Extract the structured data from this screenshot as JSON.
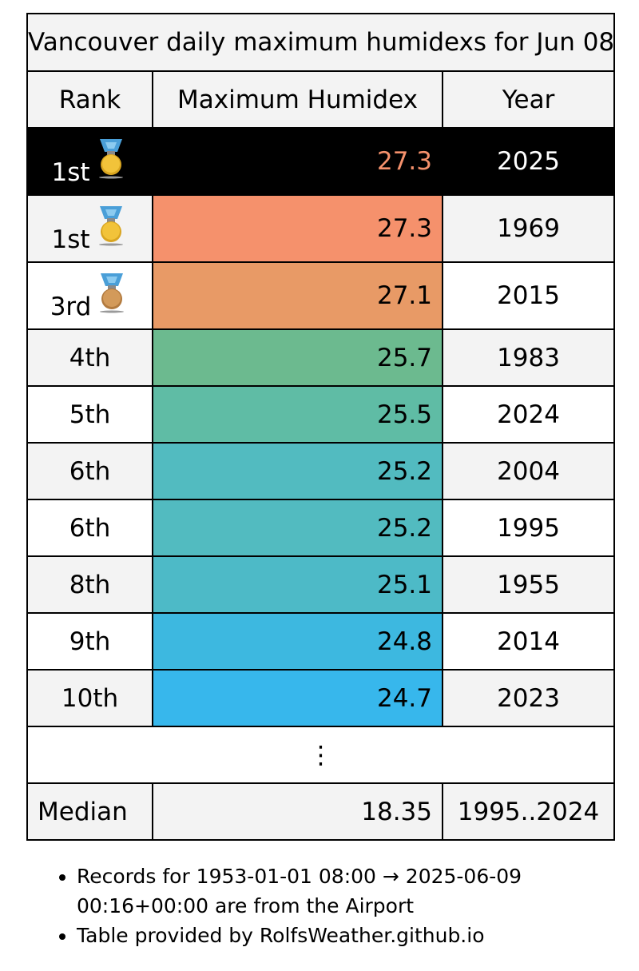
{
  "table": {
    "title": "Vancouver daily maximum humidexs for Jun 08",
    "headers": {
      "rank": "Rank",
      "value": "Maximum Humidex",
      "year": "Year"
    },
    "rows": [
      {
        "rank": "1st",
        "medal": "gold",
        "value": "27.3",
        "year": "2025",
        "color": "#000000",
        "current": true
      },
      {
        "rank": "1st",
        "medal": "gold",
        "value": "27.3",
        "year": "1969",
        "color": "#f5916c"
      },
      {
        "rank": "3rd",
        "medal": "bronze",
        "value": "27.1",
        "year": "2015",
        "color": "#e89a66"
      },
      {
        "rank": "4th",
        "value": "25.7",
        "year": "1983",
        "color": "#6cba8f"
      },
      {
        "rank": "5th",
        "value": "25.5",
        "year": "2024",
        "color": "#5fbca5"
      },
      {
        "rank": "6th",
        "value": "25.2",
        "year": "2004",
        "color": "#52bbc0"
      },
      {
        "rank": "6th",
        "value": "25.2",
        "year": "1995",
        "color": "#52bbc0"
      },
      {
        "rank": "8th",
        "value": "25.1",
        "year": "1955",
        "color": "#4dbac7"
      },
      {
        "rank": "9th",
        "value": "24.8",
        "year": "2014",
        "color": "#3db8e0"
      },
      {
        "rank": "10th",
        "value": "24.7",
        "year": "2023",
        "color": "#37b7ec"
      }
    ],
    "ellipsis": "⋮",
    "median": {
      "label": "Median",
      "value": "18.35",
      "range": "1995..2024"
    }
  },
  "notes": [
    "Records for 1953-01-01 08:00 → 2025-06-09 00:16+00:00 are from the Airport",
    "Table provided by RolfsWeather.github.io"
  ]
}
